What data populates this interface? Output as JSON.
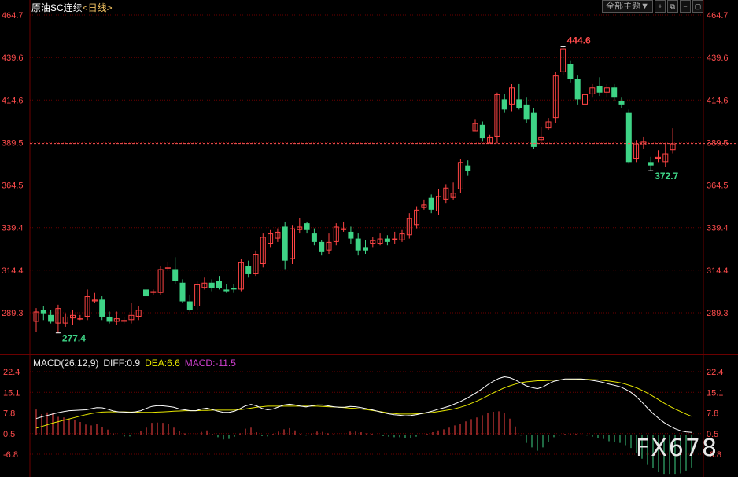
{
  "header": {
    "title": "原油SC连续",
    "timeframe": "<日线>",
    "theme_button": "全部主题▼",
    "icon_buttons": [
      "plus-box-icon",
      "restore-icon",
      "minus-box-icon",
      "fullscreen-icon"
    ]
  },
  "colors": {
    "up": "#ff4444",
    "down": "#3ed486",
    "grid": "#6b0000",
    "axis_text": "#ff4c4c",
    "last_price_line": "#ff5555",
    "diff_line": "#ffffff",
    "dea_line": "#e6e600",
    "macd_label": "#d040d0"
  },
  "macd_legend": {
    "name": "MACD(26,12,9)",
    "diff": "DIFF:0.9",
    "dea": "DEA:6.6",
    "macd": "MACD:-11.5"
  },
  "watermark": "FX678",
  "chart_data": {
    "type": "candlestick",
    "price_axis": {
      "ticks": [
        "464.7",
        "439.6",
        "414.6",
        "389.5",
        "364.5",
        "339.4",
        "314.4",
        "289.3"
      ],
      "ylim": [
        277.0,
        464.7
      ]
    },
    "last_price": 389.0,
    "annotations": {
      "high": "444.6",
      "low_right": "372.7",
      "low_left": "277.4"
    },
    "candles": [
      [
        284,
        290,
        278,
        292
      ],
      [
        291,
        289,
        285,
        293
      ],
      [
        288,
        284,
        283,
        291
      ],
      [
        283,
        292,
        277.4,
        294
      ],
      [
        283,
        287,
        281,
        289
      ],
      [
        286,
        288,
        282,
        291
      ],
      [
        286,
        286,
        285,
        288
      ],
      [
        287,
        299,
        285,
        303
      ],
      [
        296,
        297,
        295,
        301
      ],
      [
        297,
        287,
        285,
        299
      ],
      [
        287,
        284,
        283,
        290
      ],
      [
        284,
        286,
        282,
        290
      ],
      [
        284,
        285,
        283,
        287
      ],
      [
        285,
        288,
        283,
        295
      ],
      [
        287,
        291,
        285,
        293
      ],
      [
        303,
        299,
        297,
        306
      ],
      [
        301,
        302,
        300,
        303
      ],
      [
        301,
        315,
        300,
        317
      ],
      [
        316,
        316,
        314,
        319
      ],
      [
        315,
        308,
        306,
        322
      ],
      [
        307,
        296,
        295,
        309
      ],
      [
        296,
        291,
        290,
        300
      ],
      [
        293,
        306,
        291,
        308
      ],
      [
        304,
        307,
        303,
        310
      ],
      [
        307,
        304,
        302,
        309
      ],
      [
        308,
        304,
        303,
        311
      ],
      [
        303,
        302,
        301,
        306
      ],
      [
        304,
        303,
        301,
        306
      ],
      [
        303,
        319,
        302,
        321
      ],
      [
        317,
        312,
        310,
        320
      ],
      [
        312,
        324,
        311,
        326
      ],
      [
        318,
        334,
        316,
        336
      ],
      [
        330,
        336,
        328,
        338
      ],
      [
        333,
        337,
        331,
        339
      ],
      [
        340,
        320,
        315,
        343
      ],
      [
        321,
        339,
        318,
        341
      ],
      [
        338,
        340,
        336,
        345
      ],
      [
        342,
        338,
        336,
        343
      ],
      [
        336,
        331,
        329,
        339
      ],
      [
        331,
        325,
        323,
        332
      ],
      [
        326,
        331,
        324,
        336
      ],
      [
        331,
        340,
        329,
        342
      ],
      [
        338,
        339,
        337,
        343
      ],
      [
        337,
        333,
        330,
        340
      ],
      [
        333,
        326,
        323,
        336
      ],
      [
        328,
        326,
        324,
        332
      ],
      [
        330,
        332,
        328,
        334
      ],
      [
        330,
        333,
        329,
        336
      ],
      [
        333,
        331,
        329,
        335
      ],
      [
        333,
        333,
        330,
        337
      ],
      [
        332,
        336,
        331,
        338
      ],
      [
        335,
        345,
        333,
        348
      ],
      [
        341,
        350,
        339,
        352
      ],
      [
        351,
        353,
        350,
        356
      ],
      [
        357,
        350,
        348,
        359
      ],
      [
        349,
        358,
        347,
        362
      ],
      [
        356,
        363,
        354,
        365
      ],
      [
        357,
        360,
        356,
        366
      ],
      [
        362,
        378,
        360,
        380
      ],
      [
        376,
        373,
        370,
        379
      ],
      [
        396,
        401,
        396,
        403
      ],
      [
        400,
        392,
        390,
        402
      ],
      [
        389,
        393,
        389,
        394
      ],
      [
        393,
        418,
        389,
        419
      ],
      [
        415,
        409,
        407,
        418
      ],
      [
        412,
        422,
        408,
        424
      ],
      [
        415,
        410,
        409,
        424
      ],
      [
        412,
        403,
        401,
        416
      ],
      [
        407,
        387,
        386,
        410
      ],
      [
        391,
        393,
        389,
        399
      ],
      [
        398,
        402,
        397,
        404
      ],
      [
        404,
        429,
        401,
        431
      ],
      [
        431,
        445,
        429,
        446
      ],
      [
        436,
        427,
        425,
        438
      ],
      [
        427,
        415,
        412,
        429
      ],
      [
        412,
        418,
        409,
        420
      ],
      [
        418,
        422,
        416,
        424
      ],
      [
        423,
        419,
        417,
        428
      ],
      [
        419,
        422,
        416,
        424
      ],
      [
        422,
        416,
        414,
        424
      ],
      [
        414,
        412,
        410,
        416
      ],
      [
        407,
        378,
        377,
        409
      ],
      [
        380,
        389,
        378,
        391
      ],
      [
        388,
        390,
        386,
        393
      ],
      [
        378,
        376,
        373,
        381
      ],
      [
        380,
        381,
        378,
        385
      ],
      [
        378,
        383,
        375,
        389
      ],
      [
        385,
        389,
        383,
        398
      ]
    ],
    "macd_axis": {
      "ticks": [
        "22.4",
        "15.1",
        "7.8",
        "0.5",
        "-6.8"
      ],
      "ylim": [
        -11.5,
        23.8
      ]
    },
    "diff": [
      5.8,
      6.4,
      6.9,
      7.4,
      7.9,
      8.3,
      8.6,
      8.7,
      8.8,
      8.9,
      9.3,
      9.7,
      9.6,
      9.1,
      8.5,
      8.2,
      8.1,
      8.0,
      8.2,
      8.6,
      9.4,
      10.1,
      10.4,
      10.3,
      10.1,
      9.8,
      9.2,
      8.9,
      8.6,
      8.6,
      9.2,
      9.5,
      9.0,
      8.4,
      8.0,
      8.0,
      8.4,
      9.3,
      10.3,
      10.8,
      10.3,
      9.4,
      8.9,
      9.2,
      9.9,
      10.6,
      10.9,
      10.6,
      10.2,
      9.9,
      10.3,
      10.6,
      10.6,
      10.3,
      10.0,
      9.8,
      9.8,
      10.1,
      10.0,
      9.7,
      9.3,
      8.9,
      8.4,
      7.9,
      7.5,
      7.2,
      7.0,
      6.8,
      6.9,
      7.2,
      7.6,
      8.0,
      8.5,
      9.1,
      9.6,
      10.2,
      11.0,
      11.8,
      12.8,
      13.9,
      15.1,
      16.4,
      17.8,
      19.0,
      20.0,
      20.6,
      20.3,
      19.5,
      18.4,
      17.4,
      16.8,
      16.4,
      17.0,
      18.1,
      19.0,
      19.4,
      19.8,
      19.8,
      19.8,
      19.8,
      19.6,
      19.3,
      19.0,
      18.6,
      18.0,
      17.6,
      17.1,
      16.2,
      15.1,
      13.5,
      11.6,
      9.5,
      7.6,
      5.9,
      4.4,
      3.2,
      2.2,
      1.5,
      1.1,
      0.9
    ],
    "dea": [
      2.4,
      3.0,
      3.6,
      4.2,
      4.7,
      5.2,
      5.7,
      6.2,
      6.7,
      7.2,
      7.6,
      7.9,
      8.1,
      8.2,
      8.2,
      8.2,
      8.2,
      8.1,
      8.1,
      8.0,
      8.0,
      8.0,
      8.1,
      8.2,
      8.3,
      8.4,
      8.5,
      8.6,
      8.6,
      8.6,
      8.7,
      8.7,
      8.8,
      8.8,
      8.8,
      8.8,
      8.8,
      9.0,
      9.2,
      9.5,
      9.8,
      10.0,
      10.2,
      10.2,
      10.2,
      10.2,
      10.2,
      10.2,
      10.2,
      10.2,
      10.2,
      10.2,
      10.1,
      10.0,
      9.9,
      9.8,
      9.7,
      9.5,
      9.4,
      9.2,
      9.0,
      8.7,
      8.4,
      8.1,
      7.8,
      7.6,
      7.4,
      7.4,
      7.4,
      7.5,
      7.6,
      7.8,
      8.0,
      8.3,
      8.6,
      8.9,
      9.3,
      9.8,
      10.4,
      11.2,
      12.0,
      12.9,
      13.9,
      14.9,
      15.8,
      16.7,
      17.4,
      18.0,
      18.5,
      18.8,
      19.0,
      19.2,
      19.2,
      19.3,
      19.4,
      19.5,
      19.5,
      19.6,
      19.6,
      19.7,
      19.7,
      19.6,
      19.5,
      19.3,
      19.1,
      18.8,
      18.5,
      18.0,
      17.4,
      16.7,
      15.8,
      14.8,
      13.7,
      12.5,
      11.3,
      10.2,
      9.2,
      8.3,
      7.4,
      6.6
    ],
    "macd_hist": [
      9.0,
      7.4,
      8.0,
      7.9,
      6.4,
      6.2,
      5.8,
      5.2,
      4.6,
      3.7,
      3.4,
      3.8,
      2.8,
      1.9,
      0.6,
      0.0,
      -0.5,
      -0.5,
      0.1,
      1.3,
      2.6,
      4.3,
      4.4,
      4.3,
      3.8,
      2.6,
      1.4,
      0.6,
      0.0,
      0.2,
      1.1,
      1.6,
      0.4,
      -0.8,
      -1.6,
      -1.4,
      -0.6,
      0.6,
      2.2,
      2.6,
      1.0,
      -0.4,
      -0.5,
      0.4,
      1.2,
      2.0,
      2.4,
      1.6,
      0.4,
      -0.2,
      0.5,
      1.2,
      1.1,
      0.6,
      0.3,
      0.0,
      0.2,
      1.2,
      1.2,
      1.0,
      0.6,
      0.4,
      0.0,
      -0.4,
      -0.6,
      -0.8,
      -0.8,
      -1.2,
      -1.0,
      -0.6,
      0.0,
      0.4,
      1.0,
      1.6,
      2.0,
      2.6,
      3.4,
      4.0,
      4.8,
      5.6,
      6.2,
      7.0,
      7.8,
      8.2,
      8.4,
      7.8,
      5.8,
      3.0,
      -0.2,
      -2.8,
      -4.4,
      -5.6,
      -4.4,
      -2.4,
      -0.8,
      -0.2,
      0.4,
      0.4,
      0.4,
      0.2,
      -0.2,
      -0.6,
      -1.0,
      -1.4,
      -2.2,
      -2.4,
      -2.8,
      -3.6,
      -4.6,
      -6.4,
      -8.4,
      -10.6,
      -11.8,
      -13.2,
      -13.8,
      -13.8,
      -13.8,
      -13.6,
      -12.6,
      -11.5
    ]
  }
}
